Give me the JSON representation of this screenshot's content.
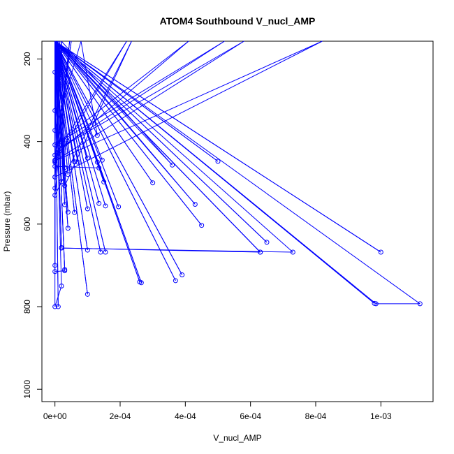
{
  "chart_data": {
    "type": "line",
    "title": "ATOM4 Southbound V_nucl_AMP",
    "xlabel": "V_nucl_AMP",
    "ylabel": "Pressure (mbar)",
    "xlim": [
      -4e-05,
      0.00116
    ],
    "ylim": [
      1030,
      157
    ],
    "y_reversed": true,
    "x_ticks": [
      {
        "value": 0,
        "label": "0e+00"
      },
      {
        "value": 0.0002,
        "label": "2e-04"
      },
      {
        "value": 0.0004,
        "label": "4e-04"
      },
      {
        "value": 0.0006,
        "label": "6e-04"
      },
      {
        "value": 0.0008,
        "label": "8e-04"
      },
      {
        "value": 0.001,
        "label": "1e-03"
      }
    ],
    "y_ticks": [
      {
        "value": 200,
        "label": "200"
      },
      {
        "value": 400,
        "label": "400"
      },
      {
        "value": 600,
        "label": "600"
      },
      {
        "value": 800,
        "label": "800"
      },
      {
        "value": 1000,
        "label": "1000"
      }
    ],
    "grid": false,
    "series_color": "#0000ff",
    "series": [
      {
        "x": [
          0.0,
          1e-05,
          0.0,
          8e-06,
          3e-05,
          2e-05,
          0.0,
          8e-05,
          0.00013,
          0.0,
          1e-05,
          0.0,
          0.0,
          5e-05,
          0.0,
          0.00022,
          0.0,
          0.00041,
          0.0,
          0.00052,
          1e-05,
          0.00058,
          0.0,
          0.00082,
          0.0,
          2e-05,
          0.00036,
          0.0,
          3e-05,
          0.000235,
          0.0,
          4.5e-05,
          0.0,
          1.5e-05,
          0.0,
          0.0,
          0.00065,
          0.0,
          0.00063,
          0.0,
          0.0001,
          0.0,
          3e-05,
          5e-06,
          0.00043,
          0.0,
          0.00098,
          0.0,
          7e-05,
          0.0,
          0.00015,
          0.0,
          0.00026,
          0.0,
          4e-05,
          0.0,
          3e-05,
          0.0,
          1e-05,
          0.0,
          0.0,
          0.000135,
          0.0,
          2e-05,
          0.0,
          0.000195,
          0.0,
          0.0005,
          0.0,
          0.000155,
          0.0,
          0.000145,
          0.0,
          0.00014,
          0.0,
          0.00013,
          0.0,
          6e-05,
          0.0,
          4e-05,
          0.0,
          2e-05,
          0.0,
          0.0001,
          0.0,
          0.0,
          3e-05,
          0.0,
          0.0001,
          0.0,
          0.000135,
          0.0,
          0.0003,
          0.0,
          0.00045,
          0.0,
          0.00037,
          0.0,
          0.00039,
          0.0,
          0.0,
          2e-05,
          0.0,
          0.0001,
          0.0,
          0.000265,
          0.0,
          0.000155,
          0.0,
          0.00073,
          2e-05,
          0.00063,
          0.0,
          0.001,
          0.0,
          4e-05,
          0.0,
          0.0,
          0.0,
          0.000985,
          0.00112,
          0.0,
          6e-05,
          0.0,
          4e-05,
          0.0
        ],
        "y": [
          232,
          157,
          325,
          157,
          463,
          157,
          373,
          157,
          385,
          157,
          405,
          157,
          445,
          157,
          450,
          157,
          433,
          157,
          408,
          157,
          418,
          157,
          447,
          157,
          486,
          157,
          457,
          157,
          507,
          157,
          530,
          157,
          486,
          157,
          513,
          157,
          644,
          157,
          668,
          157,
          563,
          157,
          553,
          157,
          552,
          157,
          792,
          157,
          450,
          157,
          498,
          157,
          740,
          157,
          571,
          157,
          710,
          157,
          800,
          157,
          460,
          464,
          157,
          497,
          157,
          558,
          157,
          448,
          157,
          556,
          157,
          445,
          157,
          668,
          157,
          450,
          157,
          572,
          157,
          610,
          157,
          657,
          157,
          440,
          157,
          715,
          713,
          157,
          770,
          157,
          550,
          157,
          500,
          157,
          603,
          157,
          737,
          157,
          723,
          157,
          800,
          750,
          157,
          663,
          157,
          742,
          157,
          668,
          157,
          668,
          658,
          668,
          157,
          668,
          157,
          480,
          157,
          700,
          157,
          793,
          793,
          157,
          449,
          157,
          400,
          157
        ]
      }
    ]
  }
}
